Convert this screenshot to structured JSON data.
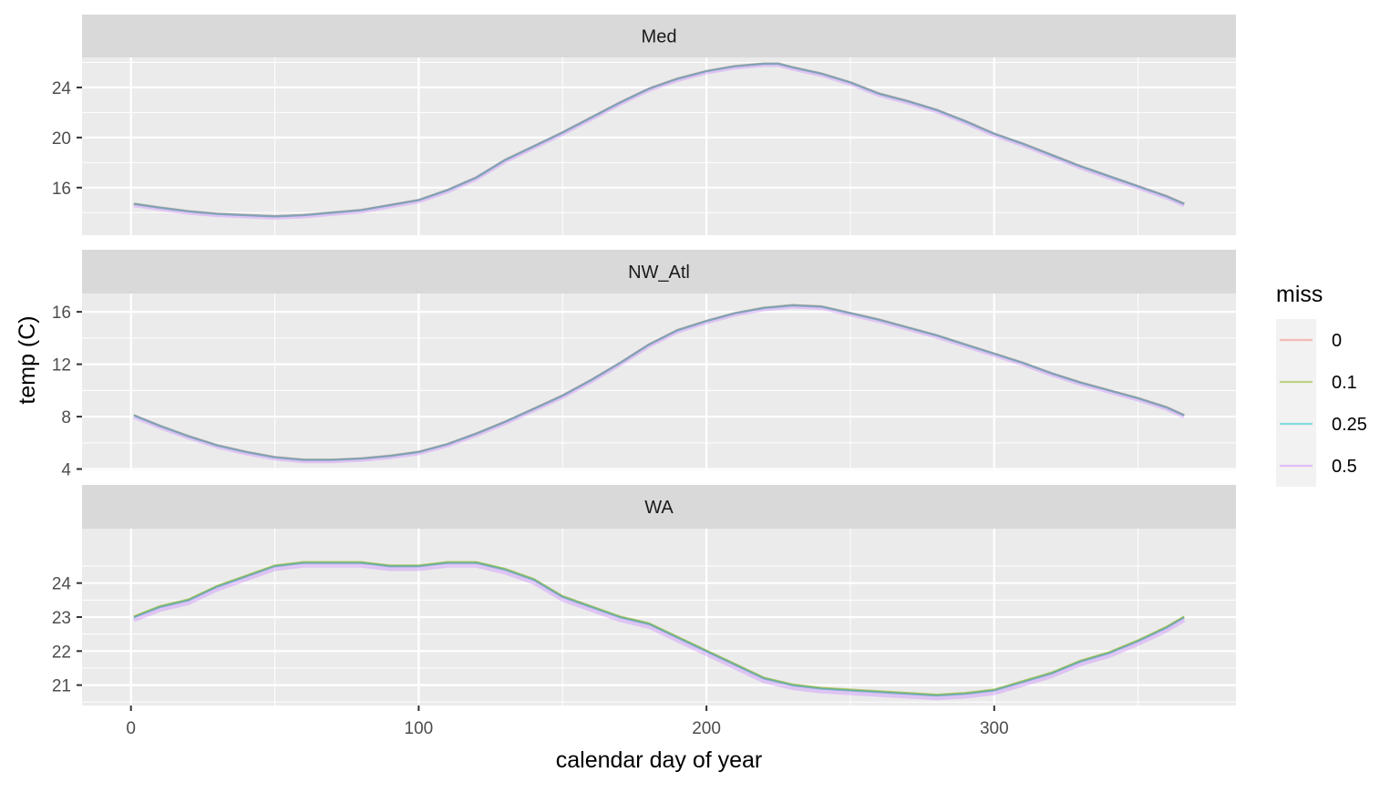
{
  "chart_data": {
    "type": "line",
    "layout": "facet-vertical",
    "xlabel": "calendar day of year",
    "ylabel": "temp (C)",
    "xlim": [
      -17,
      384
    ],
    "x_ticks": [
      0,
      100,
      200,
      300
    ],
    "grid": true,
    "legend": {
      "title": "miss",
      "position": "right",
      "entries": [
        {
          "label": "0",
          "color": "#F8766D"
        },
        {
          "label": "0.1",
          "color": "#7CAE00"
        },
        {
          "label": "0.25",
          "color": "#00BFC4"
        },
        {
          "label": "0.5",
          "color": "#C77CFF"
        }
      ]
    },
    "series_offsets": {
      "0": 0.0,
      "0.1": 0.02,
      "0.25": -0.01,
      "0.5": -0.08
    },
    "panels": [
      {
        "title": "Med",
        "ylim": [
          12.2,
          26.4
        ],
        "y_ticks": [
          16,
          20,
          24
        ],
        "x": [
          1,
          10,
          20,
          30,
          40,
          50,
          60,
          70,
          80,
          90,
          100,
          110,
          120,
          130,
          140,
          150,
          160,
          170,
          180,
          190,
          200,
          210,
          220,
          225,
          230,
          240,
          250,
          260,
          270,
          280,
          290,
          300,
          310,
          320,
          330,
          340,
          350,
          360,
          366
        ],
        "values": [
          14.7,
          14.4,
          14.1,
          13.9,
          13.8,
          13.7,
          13.8,
          14.0,
          14.2,
          14.6,
          15.0,
          15.8,
          16.8,
          18.2,
          19.3,
          20.4,
          21.6,
          22.8,
          23.9,
          24.7,
          25.3,
          25.7,
          25.9,
          25.9,
          25.6,
          25.1,
          24.4,
          23.5,
          22.9,
          22.2,
          21.3,
          20.3,
          19.5,
          18.6,
          17.7,
          16.9,
          16.1,
          15.3,
          14.7
        ]
      },
      {
        "title": "NW_Atl",
        "ylim": [
          3.9,
          17.4
        ],
        "y_ticks": [
          4,
          8,
          12,
          16
        ],
        "x": [
          1,
          10,
          20,
          30,
          40,
          50,
          60,
          70,
          80,
          90,
          100,
          110,
          120,
          130,
          140,
          150,
          160,
          170,
          180,
          190,
          200,
          210,
          220,
          230,
          240,
          250,
          260,
          270,
          280,
          290,
          300,
          310,
          320,
          330,
          340,
          350,
          360,
          366
        ],
        "values": [
          8.1,
          7.3,
          6.5,
          5.8,
          5.3,
          4.9,
          4.7,
          4.7,
          4.8,
          5.0,
          5.3,
          5.9,
          6.7,
          7.6,
          8.6,
          9.6,
          10.8,
          12.1,
          13.5,
          14.6,
          15.3,
          15.9,
          16.3,
          16.5,
          16.4,
          15.9,
          15.4,
          14.8,
          14.2,
          13.5,
          12.8,
          12.1,
          11.3,
          10.6,
          10.0,
          9.4,
          8.7,
          8.1
        ]
      },
      {
        "title": "WA",
        "ylim": [
          20.4,
          25.6
        ],
        "y_ticks": [
          21,
          22,
          23,
          24
        ],
        "x": [
          1,
          10,
          20,
          30,
          40,
          50,
          60,
          70,
          80,
          90,
          100,
          110,
          120,
          130,
          140,
          150,
          160,
          170,
          180,
          190,
          200,
          210,
          220,
          230,
          240,
          250,
          260,
          270,
          280,
          290,
          300,
          310,
          320,
          330,
          340,
          350,
          360,
          366
        ],
        "values": [
          23.0,
          23.3,
          23.5,
          23.9,
          24.2,
          24.5,
          24.6,
          24.6,
          24.6,
          24.5,
          24.5,
          24.6,
          24.6,
          24.4,
          24.1,
          23.6,
          23.3,
          23.0,
          22.8,
          22.4,
          22.0,
          21.6,
          21.2,
          21.0,
          20.9,
          20.85,
          20.8,
          20.75,
          20.7,
          20.75,
          20.85,
          21.1,
          21.35,
          21.7,
          21.95,
          22.3,
          22.7,
          23.0
        ]
      }
    ]
  }
}
